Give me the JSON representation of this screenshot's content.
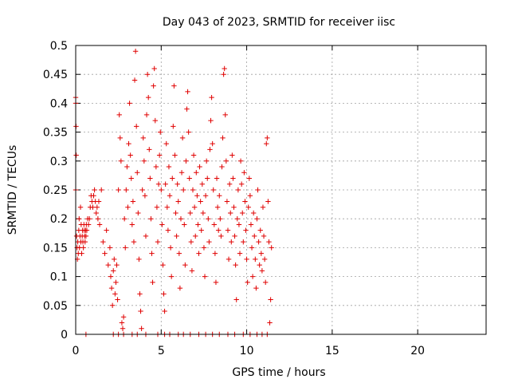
{
  "chart_data": {
    "type": "scatter",
    "title": "Day 043 of 2023, SRMTID for receiver iisc",
    "xlabel": "GPS time / hours",
    "ylabel": "SRMTID / TECUs",
    "xlim": [
      0,
      24
    ],
    "ylim": [
      0,
      0.5
    ],
    "x_ticks": [
      0,
      5,
      10,
      15,
      20
    ],
    "y_ticks": [
      0,
      0.05,
      0.1,
      0.15,
      0.2,
      0.25,
      0.3,
      0.35,
      0.4,
      0.45,
      0.5
    ],
    "grid": true,
    "marker": "plus",
    "color": "#e00000",
    "series": [
      {
        "points": [
          [
            0.0,
            0.41
          ],
          [
            0.0,
            0.4
          ],
          [
            0.02,
            0.36
          ],
          [
            0.03,
            0.31
          ],
          [
            0.0,
            0.25
          ],
          [
            0.05,
            0.17
          ],
          [
            0.08,
            0.15
          ],
          [
            0.1,
            0.13
          ],
          [
            0.12,
            0.16
          ],
          [
            0.15,
            0.14
          ],
          [
            0.18,
            0.18
          ],
          [
            0.2,
            0.2
          ],
          [
            0.22,
            0.15
          ],
          [
            0.25,
            0.17
          ],
          [
            0.28,
            0.22
          ],
          [
            0.3,
            0.16
          ],
          [
            0.32,
            0.19
          ],
          [
            0.35,
            0.14
          ],
          [
            0.38,
            0.17
          ],
          [
            0.4,
            0.18
          ],
          [
            0.42,
            0.16
          ],
          [
            0.45,
            0.15
          ],
          [
            0.48,
            0.19
          ],
          [
            0.5,
            0.18
          ],
          [
            0.52,
            0.17
          ],
          [
            0.55,
            0.16
          ],
          [
            0.58,
            0.18
          ],
          [
            0.6,
            0.17
          ],
          [
            0.62,
            0.19
          ],
          [
            0.65,
            0.18
          ],
          [
            0.7,
            0.2
          ],
          [
            0.75,
            0.19
          ],
          [
            0.8,
            0.2
          ],
          [
            0.85,
            0.22
          ],
          [
            0.9,
            0.24
          ],
          [
            0.95,
            0.23
          ],
          [
            1.0,
            0.22
          ],
          [
            1.05,
            0.24
          ],
          [
            1.1,
            0.25
          ],
          [
            1.15,
            0.23
          ],
          [
            1.2,
            0.21
          ],
          [
            1.25,
            0.22
          ],
          [
            1.3,
            0.2
          ],
          [
            1.35,
            0.23
          ],
          [
            1.4,
            0.19
          ],
          [
            1.5,
            0.25
          ],
          [
            1.6,
            0.16
          ],
          [
            1.7,
            0.14
          ],
          [
            1.8,
            0.18
          ],
          [
            1.9,
            0.12
          ],
          [
            2.0,
            0.15
          ],
          [
            2.05,
            0.1
          ],
          [
            2.1,
            0.08
          ],
          [
            2.15,
            0.05
          ],
          [
            2.2,
            0.11
          ],
          [
            2.25,
            0.13
          ],
          [
            2.3,
            0.07
          ],
          [
            2.35,
            0.09
          ],
          [
            2.4,
            0.12
          ],
          [
            2.45,
            0.06
          ],
          [
            2.5,
            0.25
          ],
          [
            2.55,
            0.38
          ],
          [
            2.6,
            0.34
          ],
          [
            2.65,
            0.3
          ],
          [
            2.7,
            0.02
          ],
          [
            2.75,
            0.01
          ],
          [
            2.8,
            0.03
          ],
          [
            2.85,
            0.2
          ],
          [
            2.9,
            0.15
          ],
          [
            2.95,
            0.25
          ],
          [
            3.0,
            0.29
          ],
          [
            3.05,
            0.22
          ],
          [
            3.1,
            0.33
          ],
          [
            3.15,
            0.4
          ],
          [
            3.2,
            0.31
          ],
          [
            3.25,
            0.27
          ],
          [
            3.3,
            0.19
          ],
          [
            3.35,
            0.23
          ],
          [
            3.4,
            0.16
          ],
          [
            3.45,
            0.44
          ],
          [
            3.5,
            0.49
          ],
          [
            3.55,
            0.36
          ],
          [
            3.6,
            0.28
          ],
          [
            3.65,
            0.21
          ],
          [
            3.7,
            0.13
          ],
          [
            3.75,
            0.07
          ],
          [
            3.8,
            0.04
          ],
          [
            3.85,
            0.01
          ],
          [
            3.9,
            0.25
          ],
          [
            3.95,
            0.34
          ],
          [
            4.0,
            0.3
          ],
          [
            4.05,
            0.24
          ],
          [
            4.1,
            0.17
          ],
          [
            4.15,
            0.38
          ],
          [
            4.2,
            0.45
          ],
          [
            4.25,
            0.41
          ],
          [
            4.3,
            0.32
          ],
          [
            4.35,
            0.27
          ],
          [
            4.4,
            0.2
          ],
          [
            4.45,
            0.14
          ],
          [
            4.5,
            0.09
          ],
          [
            4.55,
            0.43
          ],
          [
            4.6,
            0.46
          ],
          [
            4.65,
            0.37
          ],
          [
            4.7,
            0.29
          ],
          [
            4.75,
            0.22
          ],
          [
            4.8,
            0.16
          ],
          [
            4.85,
            0.26
          ],
          [
            4.9,
            0.31
          ],
          [
            4.95,
            0.35
          ],
          [
            5.0,
            0.25
          ],
          [
            5.05,
            0.19
          ],
          [
            5.1,
            0.12
          ],
          [
            5.15,
            0.07
          ],
          [
            5.2,
            0.04
          ],
          [
            5.25,
            0.26
          ],
          [
            5.3,
            0.33
          ],
          [
            5.35,
            0.22
          ],
          [
            5.4,
            0.18
          ],
          [
            5.45,
            0.29
          ],
          [
            5.5,
            0.24
          ],
          [
            5.55,
            0.15
          ],
          [
            5.6,
            0.1
          ],
          [
            5.65,
            0.27
          ],
          [
            5.7,
            0.36
          ],
          [
            5.75,
            0.43
          ],
          [
            5.8,
            0.31
          ],
          [
            5.85,
            0.21
          ],
          [
            5.9,
            0.17
          ],
          [
            5.95,
            0.26
          ],
          [
            6.0,
            0.23
          ],
          [
            6.05,
            0.14
          ],
          [
            6.1,
            0.08
          ],
          [
            6.15,
            0.2
          ],
          [
            6.2,
            0.28
          ],
          [
            6.25,
            0.34
          ],
          [
            6.3,
            0.25
          ],
          [
            6.35,
            0.19
          ],
          [
            6.4,
            0.12
          ],
          [
            6.45,
            0.3
          ],
          [
            6.5,
            0.39
          ],
          [
            6.55,
            0.42
          ],
          [
            6.6,
            0.35
          ],
          [
            6.65,
            0.27
          ],
          [
            6.7,
            0.21
          ],
          [
            6.75,
            0.16
          ],
          [
            6.8,
            0.11
          ],
          [
            6.85,
            0.25
          ],
          [
            6.9,
            0.31
          ],
          [
            6.95,
            0.22
          ],
          [
            7.0,
            0.17
          ],
          [
            7.05,
            0.28
          ],
          [
            7.1,
            0.24
          ],
          [
            7.15,
            0.19
          ],
          [
            7.2,
            0.14
          ],
          [
            7.25,
            0.29
          ],
          [
            7.3,
            0.23
          ],
          [
            7.35,
            0.18
          ],
          [
            7.4,
            0.26
          ],
          [
            7.45,
            0.21
          ],
          [
            7.5,
            0.15
          ],
          [
            7.55,
            0.1
          ],
          [
            7.6,
            0.24
          ],
          [
            7.65,
            0.3
          ],
          [
            7.7,
            0.27
          ],
          [
            7.75,
            0.2
          ],
          [
            7.8,
            0.16
          ],
          [
            7.85,
            0.32
          ],
          [
            7.9,
            0.37
          ],
          [
            7.95,
            0.41
          ],
          [
            8.0,
            0.33
          ],
          [
            8.05,
            0.25
          ],
          [
            8.1,
            0.19
          ],
          [
            8.15,
            0.14
          ],
          [
            8.2,
            0.09
          ],
          [
            8.25,
            0.27
          ],
          [
            8.3,
            0.22
          ],
          [
            8.35,
            0.18
          ],
          [
            8.4,
            0.24
          ],
          [
            8.45,
            0.2
          ],
          [
            8.5,
            0.17
          ],
          [
            8.55,
            0.29
          ],
          [
            8.6,
            0.34
          ],
          [
            8.65,
            0.45
          ],
          [
            8.7,
            0.46
          ],
          [
            8.75,
            0.38
          ],
          [
            8.8,
            0.3
          ],
          [
            8.85,
            0.23
          ],
          [
            8.9,
            0.18
          ],
          [
            8.95,
            0.13
          ],
          [
            9.0,
            0.26
          ],
          [
            9.05,
            0.21
          ],
          [
            9.1,
            0.16
          ],
          [
            9.15,
            0.31
          ],
          [
            9.2,
            0.27
          ],
          [
            9.25,
            0.22
          ],
          [
            9.3,
            0.17
          ],
          [
            9.35,
            0.12
          ],
          [
            9.4,
            0.06
          ],
          [
            9.45,
            0.2
          ],
          [
            9.5,
            0.25
          ],
          [
            9.55,
            0.19
          ],
          [
            9.6,
            0.14
          ],
          [
            9.65,
            0.3
          ],
          [
            9.7,
            0.26
          ],
          [
            9.75,
            0.21
          ],
          [
            9.8,
            0.16
          ],
          [
            9.85,
            0.28
          ],
          [
            9.9,
            0.23
          ],
          [
            9.95,
            0.18
          ],
          [
            10.0,
            0.13
          ],
          [
            10.05,
            0.09
          ],
          [
            10.1,
            0.22
          ],
          [
            10.15,
            0.27
          ],
          [
            10.2,
            0.24
          ],
          [
            10.25,
            0.19
          ],
          [
            10.3,
            0.15
          ],
          [
            10.35,
            0.1
          ],
          [
            10.4,
            0.21
          ],
          [
            10.45,
            0.17
          ],
          [
            10.5,
            0.13
          ],
          [
            10.55,
            0.08
          ],
          [
            10.6,
            0.2
          ],
          [
            10.65,
            0.25
          ],
          [
            10.7,
            0.16
          ],
          [
            10.75,
            0.12
          ],
          [
            10.8,
            0.18
          ],
          [
            10.85,
            0.14
          ],
          [
            10.9,
            0.11
          ],
          [
            10.95,
            0.22
          ],
          [
            11.0,
            0.17
          ],
          [
            11.05,
            0.13
          ],
          [
            11.1,
            0.09
          ],
          [
            11.15,
            0.33
          ],
          [
            11.2,
            0.34
          ],
          [
            11.25,
            0.23
          ],
          [
            11.3,
            0.16
          ],
          [
            11.35,
            0.02
          ],
          [
            11.4,
            0.06
          ],
          [
            11.45,
            0.15
          ],
          [
            0.6,
            0.0
          ],
          [
            2.2,
            0.0
          ],
          [
            2.5,
            0.0
          ],
          [
            2.8,
            0.0
          ],
          [
            3.3,
            0.0
          ],
          [
            3.6,
            0.0
          ],
          [
            4.1,
            0.0
          ],
          [
            4.8,
            0.0
          ],
          [
            5.2,
            0.0
          ],
          [
            5.5,
            0.0
          ],
          [
            6.0,
            0.0
          ],
          [
            6.3,
            0.0
          ],
          [
            6.7,
            0.0
          ],
          [
            7.2,
            0.0
          ],
          [
            7.6,
            0.0
          ],
          [
            8.0,
            0.0
          ],
          [
            8.4,
            0.0
          ],
          [
            8.9,
            0.0
          ],
          [
            9.3,
            0.0
          ],
          [
            9.8,
            0.0
          ],
          [
            10.2,
            0.0
          ],
          [
            10.6,
            0.0
          ],
          [
            10.9,
            0.0
          ],
          [
            11.2,
            0.0
          ]
        ]
      }
    ]
  }
}
